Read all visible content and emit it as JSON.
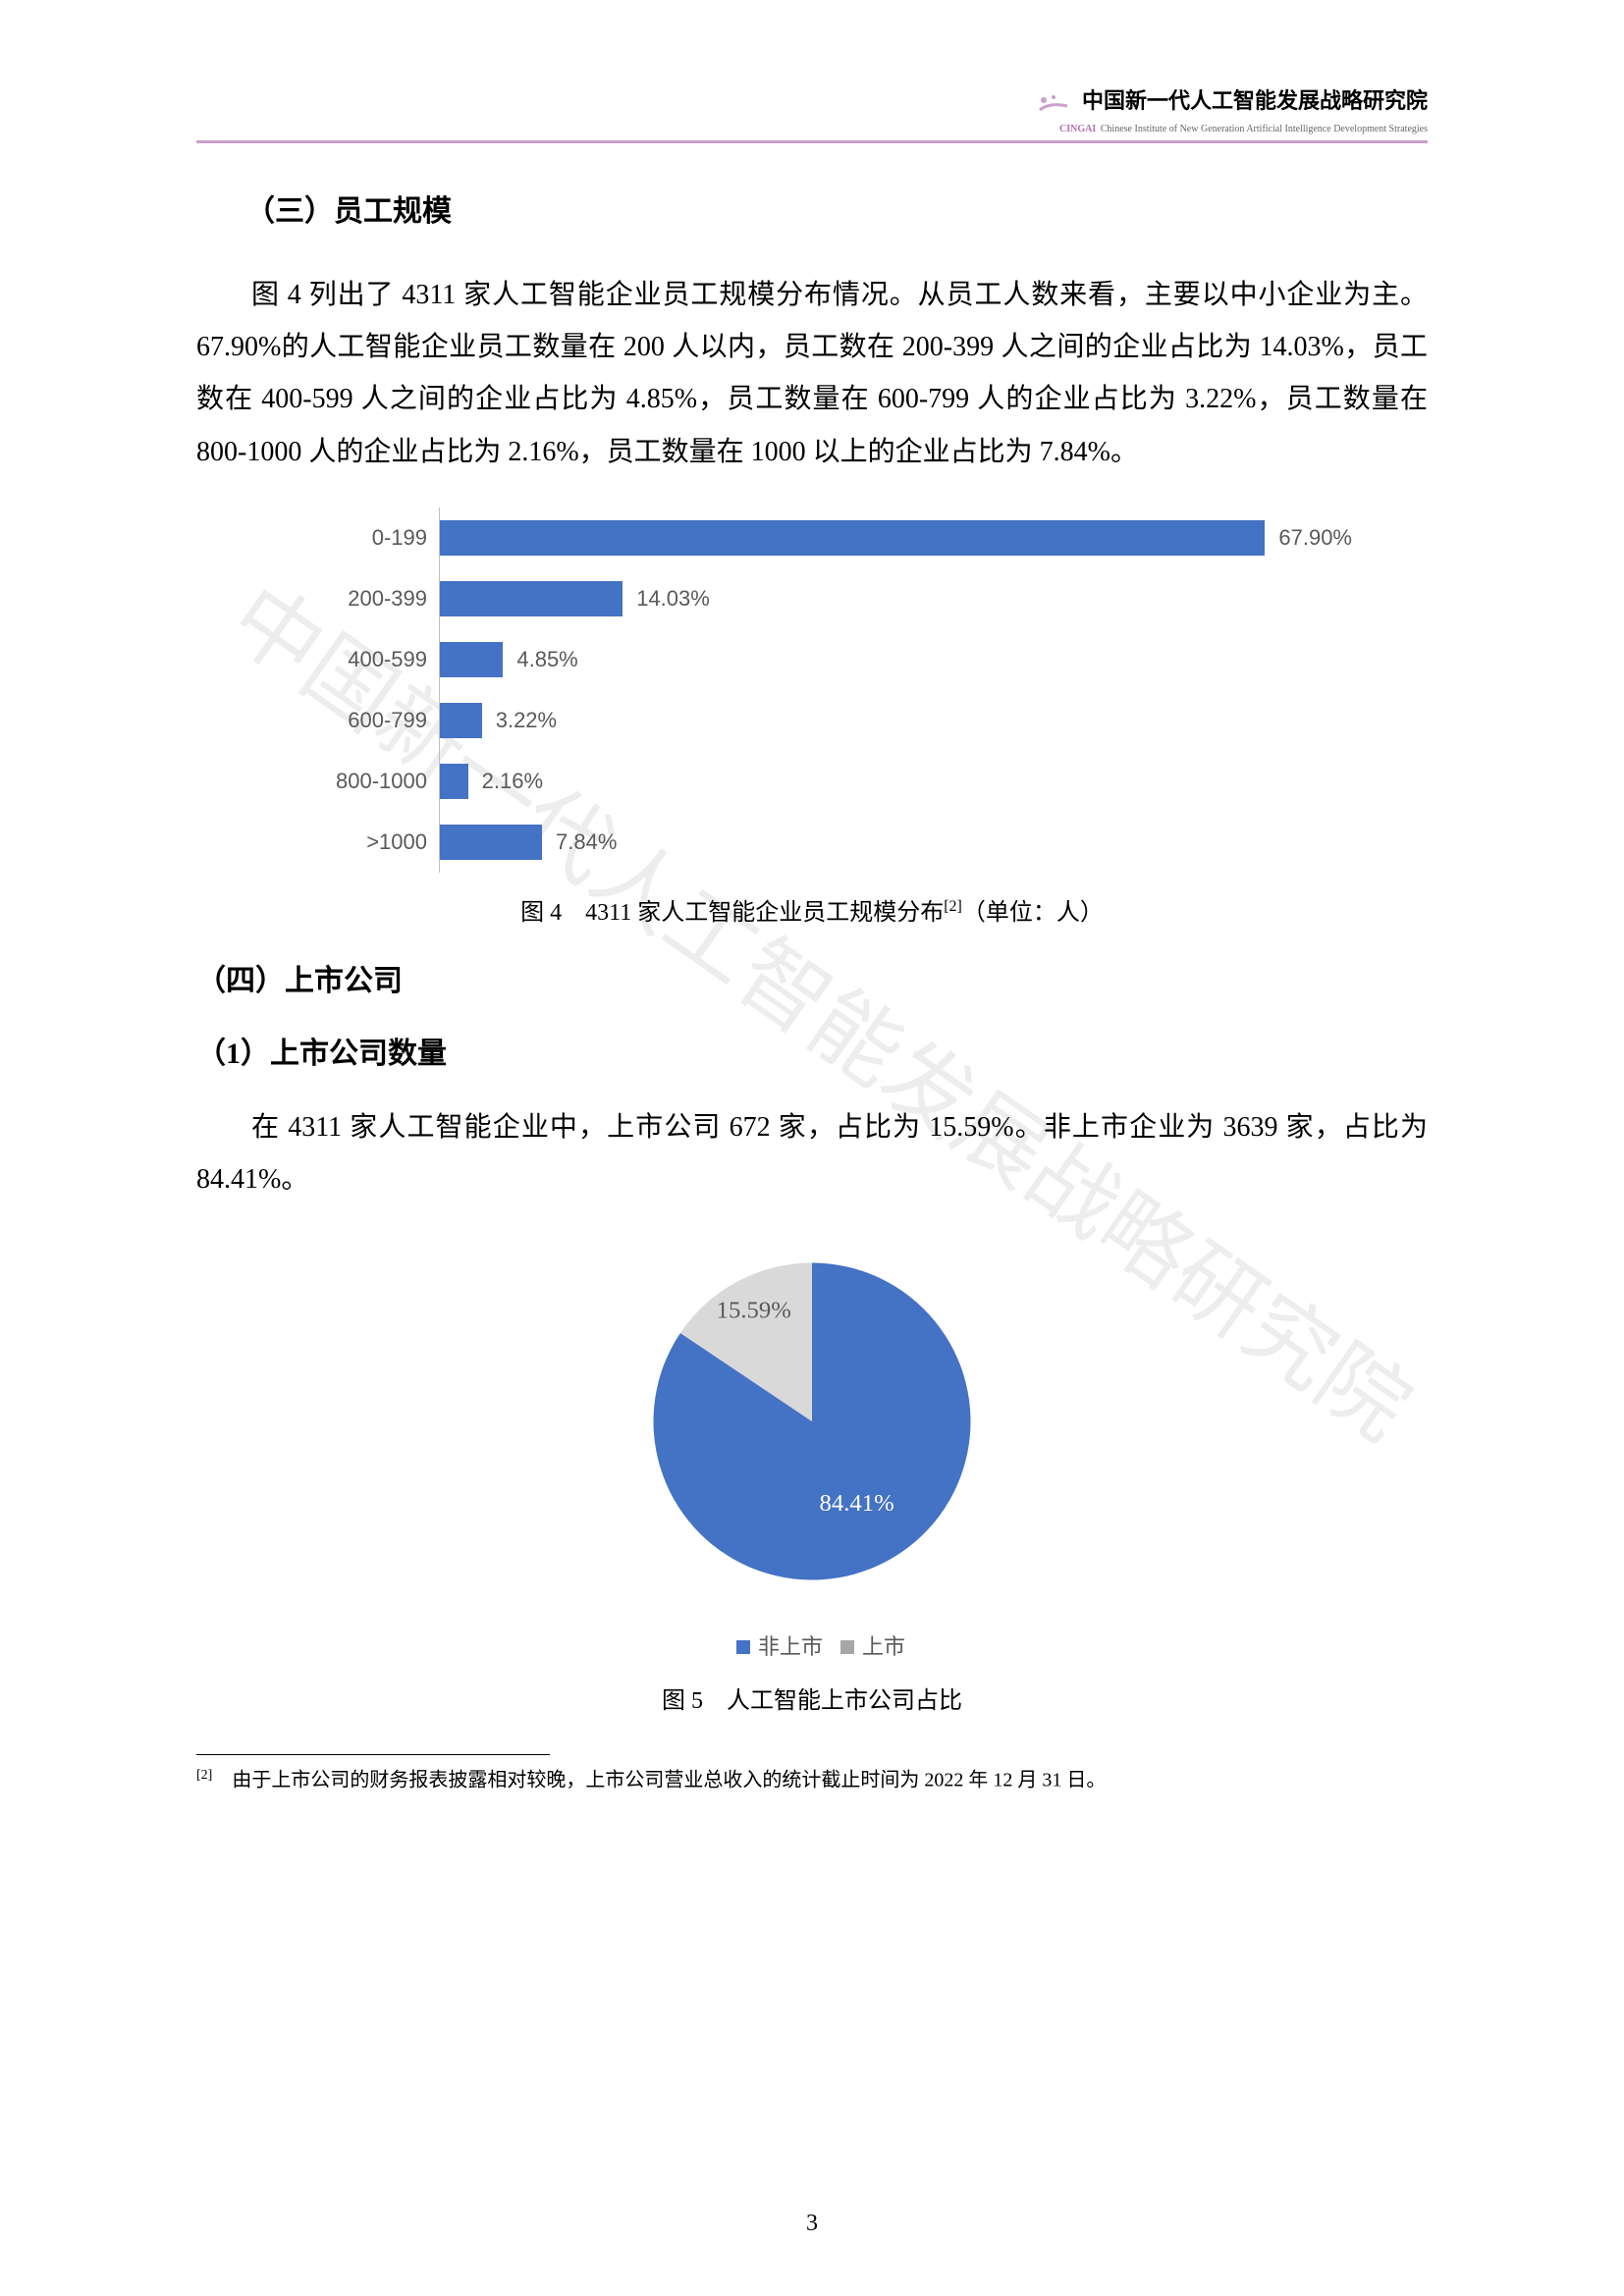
{
  "header": {
    "org_cn": "中国新一代人工智能发展战略研究院",
    "org_en": "Chinese Institute of New Generation Artificial Intelligence Development Strategies",
    "tag": "CINGAI"
  },
  "section3": {
    "title": "（三）员工规模",
    "para": "图 4 列出了 4311 家人工智能企业员工规模分布情况。从员工人数来看，主要以中小企业为主。67.90%的人工智能企业员工数量在 200 人以内，员工数在 200-399 人之间的企业占比为 14.03%，员工数在 400-599 人之间的企业占比为 4.85%，员工数量在 600-799 人的企业占比为 3.22%，员工数量在 800-1000 人的企业占比为 2.16%，员工数量在 1000 以上的企业占比为 7.84%。"
  },
  "bar_chart": {
    "type": "bar",
    "orientation": "horizontal",
    "categories": [
      "0-199",
      "200-399",
      "400-599",
      "600-799",
      "800-1000",
      ">1000"
    ],
    "values": [
      67.9,
      14.03,
      4.85,
      3.22,
      2.16,
      7.84
    ],
    "value_labels": [
      "67.90%",
      "14.03%",
      "4.85%",
      "3.22%",
      "2.16%",
      "7.84%"
    ],
    "bar_color": "#4472c4",
    "axis_color": "#bfbfbf",
    "label_color": "#595959",
    "label_fontsize": 22,
    "max_scale": 70,
    "caption": "图 4　4311 家人工智能企业员工规模分布",
    "caption_sup": "[2]",
    "caption_tail": "（单位：人）"
  },
  "section4": {
    "title": "（四）上市公司",
    "sub1_title": "（1）上市公司数量",
    "para": "在 4311 家人工智能企业中，上市公司 672 家，占比为 15.59%。非上市企业为 3639 家，占比为 84.41%。"
  },
  "pie_chart": {
    "type": "pie",
    "slices": [
      {
        "label": "非上市",
        "value": 84.41,
        "color": "#4472c4",
        "text_color": "#ffffff"
      },
      {
        "label": "上市",
        "value": 15.59,
        "color": "#d9d9d9",
        "text_color": "#595959"
      }
    ],
    "legend_marker_colors": [
      "#4472c4",
      "#a6a6a6"
    ],
    "caption": "图 5　人工智能上市公司占比"
  },
  "footnote": {
    "mark": "[2]",
    "text": "由于上市公司的财务报表披露相对较晚，上市公司营业总收入的统计截止时间为 2022 年 12 月 31 日。"
  },
  "page_number": "3",
  "watermark_text": "中国新一代人工智能发展战略研究院"
}
